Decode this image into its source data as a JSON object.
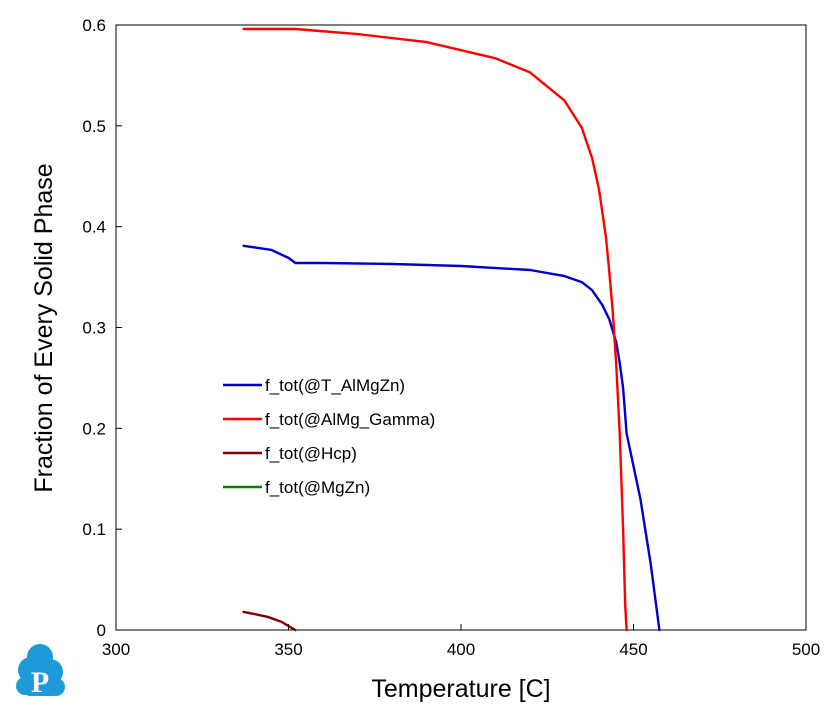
{
  "chart_data": {
    "type": "line",
    "xlabel": "Temperature [C]",
    "ylabel": "Fraction of Every Solid Phase",
    "xlim": [
      300,
      500
    ],
    "ylim": [
      0,
      0.6
    ],
    "xticks": [
      300,
      350,
      400,
      450,
      500
    ],
    "yticks": [
      0,
      0.1,
      0.2,
      0.3,
      0.4,
      0.5,
      0.6
    ],
    "ytick_labels": [
      "0",
      "0.1",
      "0.2",
      "0.3",
      "0.4",
      "0.5",
      "0.6"
    ],
    "grid": false,
    "legend_position": "center-left",
    "series": [
      {
        "name": "f_tot(@T_AlMgZn)",
        "color": "#0000cc",
        "x": [
          337,
          345,
          350,
          352,
          360,
          380,
          400,
          420,
          430,
          435,
          438,
          441,
          443,
          445,
          446,
          447,
          448,
          452,
          455,
          457.5
        ],
        "y": [
          0.381,
          0.377,
          0.369,
          0.364,
          0.364,
          0.363,
          0.361,
          0.357,
          0.351,
          0.345,
          0.337,
          0.322,
          0.308,
          0.285,
          0.265,
          0.24,
          0.195,
          0.13,
          0.065,
          0
        ]
      },
      {
        "name": "f_tot(@AlMg_Gamma)",
        "color": "#ff0000",
        "x": [
          337,
          345,
          352,
          370,
          390,
          410,
          420,
          430,
          435,
          438,
          440,
          442,
          443,
          444,
          445,
          446,
          447,
          447.6,
          448
        ],
        "y": [
          0.596,
          0.596,
          0.596,
          0.591,
          0.583,
          0.567,
          0.553,
          0.525,
          0.498,
          0.468,
          0.437,
          0.39,
          0.355,
          0.315,
          0.262,
          0.195,
          0.1,
          0.025,
          0
        ]
      },
      {
        "name": "f_tot(@Hcp)",
        "color": "#800000",
        "x": [
          337,
          340,
          344,
          348,
          350,
          352
        ],
        "y": [
          0.018,
          0.016,
          0.013,
          0.008,
          0.004,
          0
        ]
      },
      {
        "name": "f_tot(@MgZn)",
        "color": "#008000",
        "x": [],
        "y": []
      }
    ]
  },
  "logo": {
    "letter": "P",
    "color": "#1c9bd8"
  }
}
